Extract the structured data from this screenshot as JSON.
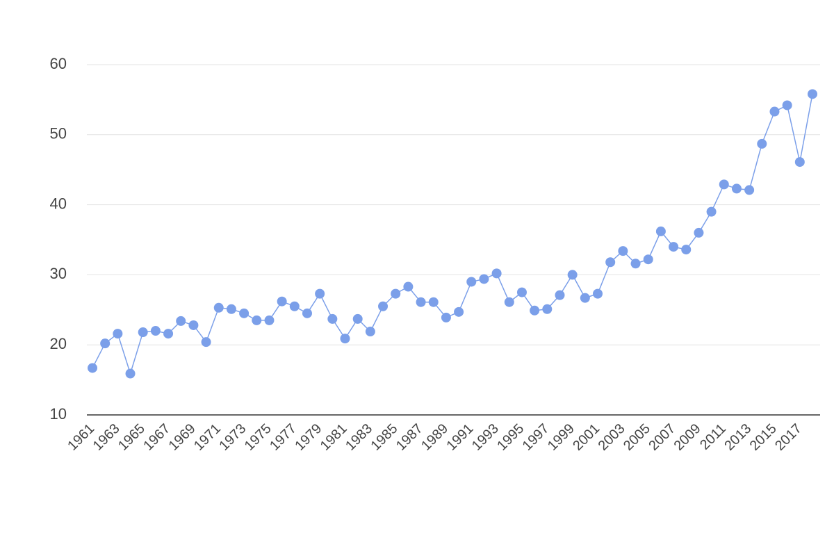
{
  "chart_data": {
    "type": "line",
    "categories": [
      "1961",
      null,
      "1963",
      null,
      "1965",
      null,
      "1967",
      null,
      "1969",
      null,
      "1971",
      null,
      "1973",
      null,
      "1975",
      null,
      "1977",
      null,
      "1979",
      null,
      "1981",
      null,
      "1983",
      null,
      "1985",
      null,
      "1987",
      null,
      "1989",
      null,
      "1991",
      null,
      "1993",
      null,
      "1995",
      null,
      "1997",
      null,
      "1999",
      null,
      "2001",
      null,
      "2003",
      null,
      "2005",
      null,
      "2007",
      null,
      "2009",
      null,
      "2011",
      null,
      "2013",
      null,
      "2015",
      null,
      "2017",
      null
    ],
    "series": [
      {
        "color": "#7b9fe9",
        "values": [
          16.7,
          20.2,
          21.6,
          15.9,
          21.8,
          22.0,
          21.6,
          23.4,
          22.8,
          20.4,
          25.3,
          25.1,
          24.5,
          23.5,
          23.5,
          26.2,
          25.5,
          24.5,
          27.3,
          23.7,
          20.9,
          23.7,
          21.9,
          25.5,
          27.3,
          28.3,
          26.1,
          26.1,
          23.9,
          24.7,
          29.0,
          29.4,
          30.2,
          26.1,
          27.5,
          24.9,
          25.1,
          27.1,
          30.0,
          26.7,
          27.3,
          31.8,
          33.4,
          31.6,
          32.2,
          36.2,
          34.0,
          33.6,
          36.0,
          39.0,
          42.9,
          42.3,
          42.1,
          48.7,
          53.3,
          54.2,
          46.1,
          55.8
        ]
      }
    ],
    "ylim": [
      10,
      60
    ],
    "yticks": [
      10,
      20,
      30,
      40,
      50,
      60
    ],
    "grid": true
  }
}
